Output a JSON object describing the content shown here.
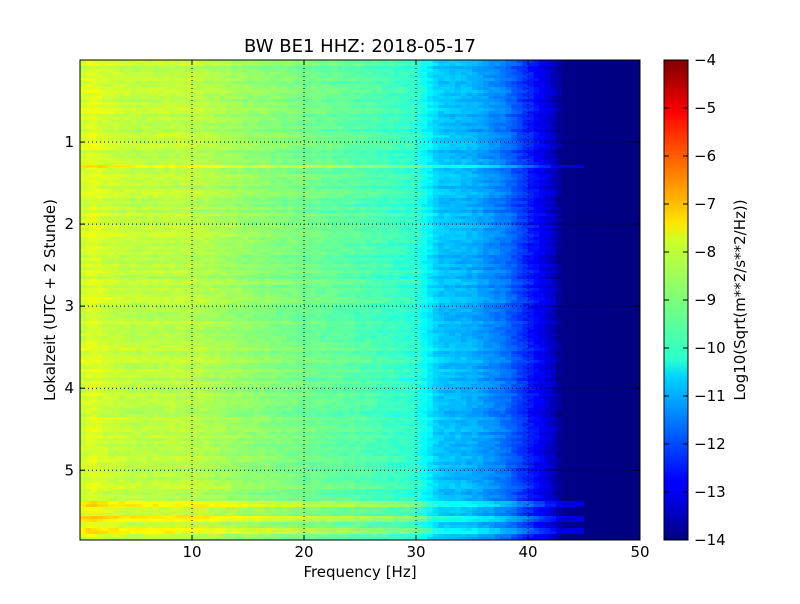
{
  "chart_data": {
    "type": "heatmap",
    "title": "BW BE1 HHZ: 2018-05-17",
    "xlabel": "Frequency [Hz]",
    "ylabel": "Lokalzeit (UTC + 2 Stunde)",
    "xlim": [
      0,
      50
    ],
    "ylim": [
      5.85,
      0
    ],
    "x_ticks": [
      10,
      20,
      30,
      40,
      50
    ],
    "x_tick_labels": [
      "10",
      "20",
      "30",
      "40",
      "50"
    ],
    "y_ticks": [
      1,
      2,
      3,
      4,
      5
    ],
    "y_tick_labels": [
      "1",
      "2",
      "3",
      "4",
      "5"
    ],
    "grid": true,
    "colormap": "jet",
    "colorbar": {
      "label": "Log10(Sqrt(m**2/s**2/Hz))",
      "range": [
        -14,
        -4
      ],
      "ticks": [
        -4,
        -5,
        -6,
        -7,
        -8,
        -9,
        -10,
        -11,
        -12,
        -13,
        -14
      ],
      "tick_labels": [
        "−4",
        "−5",
        "−6",
        "−7",
        "−8",
        "−9",
        "−10",
        "−11",
        "−12",
        "−13",
        "−14"
      ]
    },
    "approx_profile_by_frequency": {
      "frequency_hz": [
        0,
        1,
        2,
        5,
        10,
        15,
        20,
        25,
        30,
        32,
        35,
        38,
        40,
        42,
        43,
        50
      ],
      "log10_amplitude": [
        -8.3,
        -8.0,
        -8.2,
        -8.4,
        -8.4,
        -8.8,
        -9.1,
        -9.4,
        -9.8,
        -10.8,
        -11.0,
        -11.6,
        -12.4,
        -13.2,
        -13.9,
        -14.0
      ]
    },
    "notable_rows": [
      {
        "time_hour": 1.3,
        "note": "stronger band"
      },
      {
        "time_hour": 5.4,
        "note": "stronger band"
      },
      {
        "time_hour": 5.6,
        "note": "stronger band, extends to ~45 Hz"
      },
      {
        "time_hour": 5.75,
        "note": "stronger band, extends to ~45 Hz"
      }
    ]
  }
}
